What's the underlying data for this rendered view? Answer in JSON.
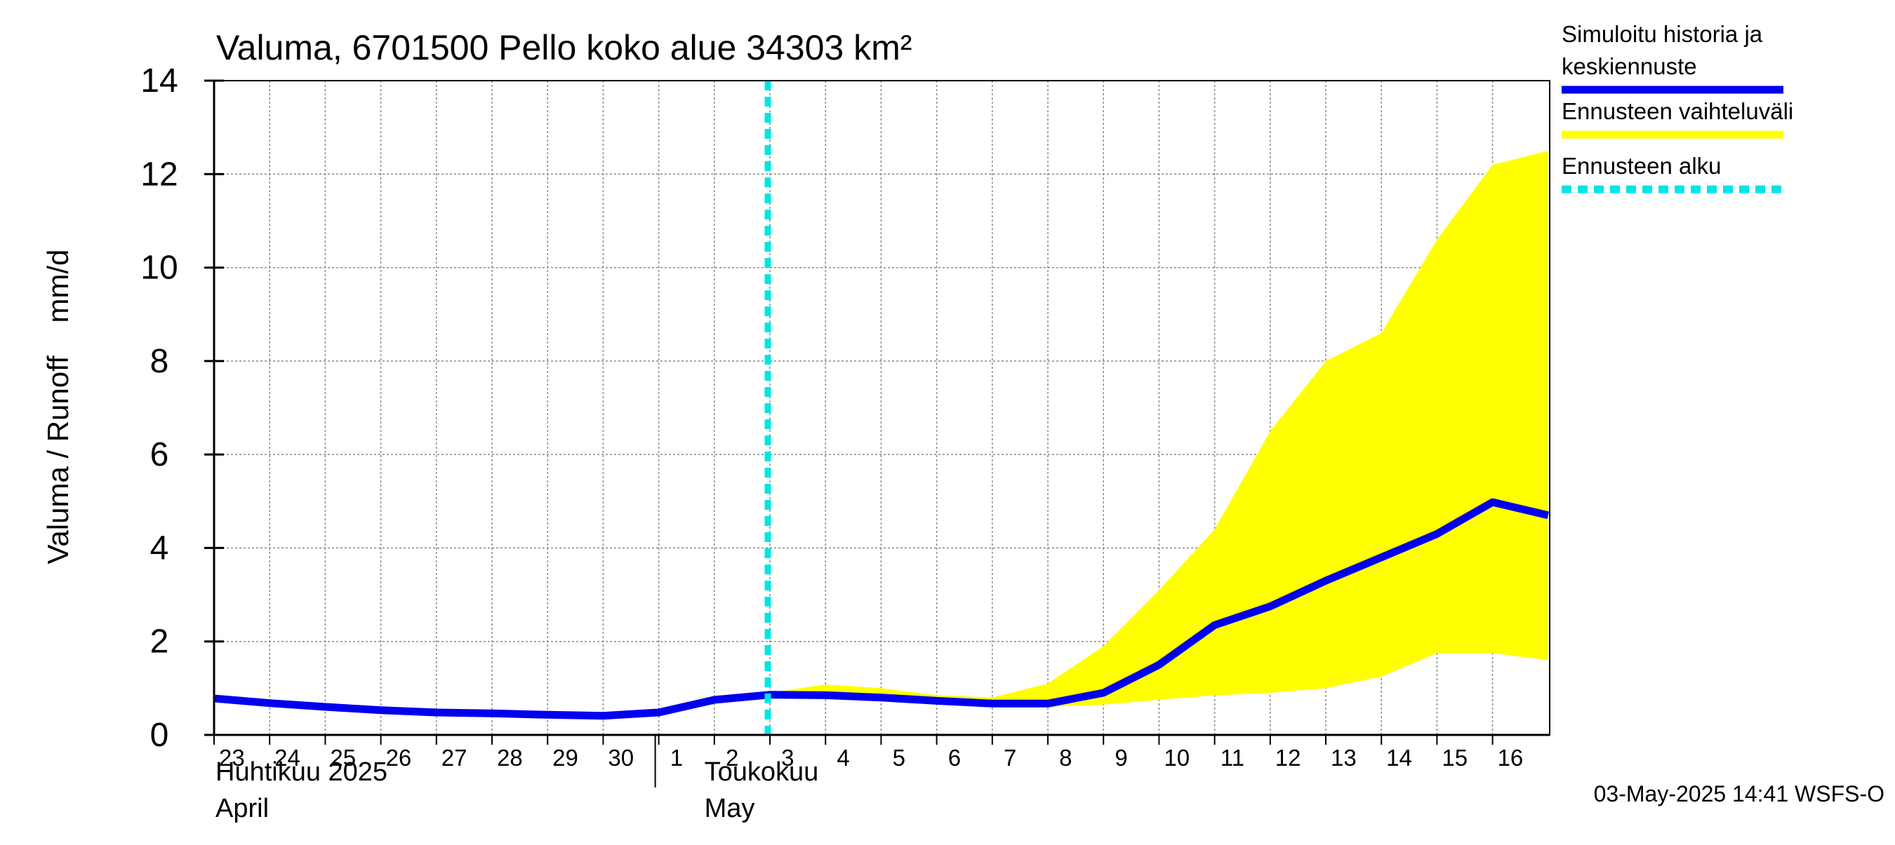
{
  "chart_data": {
    "type": "line",
    "title": "Valuma, 6701500 Pello koko alue 34303 km²",
    "ylabel": "Valuma / Runoff    mm/d",
    "ylim": [
      0,
      14
    ],
    "y_ticks": [
      0,
      2,
      4,
      6,
      8,
      10,
      12,
      14
    ],
    "x_range": [
      "2025-04-23",
      "2025-05-16"
    ],
    "x_tick_labels": [
      "23",
      "24",
      "25",
      "26",
      "27",
      "28",
      "29",
      "30",
      "1",
      "2",
      "3",
      "4",
      "5",
      "6",
      "7",
      "8",
      "9",
      "10",
      "11",
      "12",
      "13",
      "14",
      "15",
      "16"
    ],
    "month_labels": [
      {
        "fi": "Huhtikuu  2025",
        "en": "April"
      },
      {
        "fi": "Toukokuu",
        "en": "May"
      }
    ],
    "grid": true,
    "legend_position": "right",
    "forecast_start": "2025-05-03",
    "series": [
      {
        "name": "Simuloitu historia ja keskiennuste",
        "kind": "line",
        "color": "#0000ee",
        "x": [
          "2025-04-23",
          "2025-04-24",
          "2025-04-25",
          "2025-04-26",
          "2025-04-27",
          "2025-04-28",
          "2025-04-29",
          "2025-04-30",
          "2025-05-01",
          "2025-05-02",
          "2025-05-03",
          "2025-05-04",
          "2025-05-05",
          "2025-05-06",
          "2025-05-07",
          "2025-05-08",
          "2025-05-09",
          "2025-05-10",
          "2025-05-11",
          "2025-05-12",
          "2025-05-13",
          "2025-05-14",
          "2025-05-15",
          "2025-05-16",
          "2025-05-17"
        ],
        "y": [
          0.78,
          0.68,
          0.6,
          0.53,
          0.48,
          0.46,
          0.43,
          0.41,
          0.48,
          0.75,
          0.86,
          0.85,
          0.8,
          0.73,
          0.67,
          0.67,
          0.9,
          1.5,
          2.35,
          2.75,
          3.3,
          3.8,
          4.3,
          4.98,
          4.7
        ]
      },
      {
        "name": "Ennusteen vaihteluväli",
        "kind": "band",
        "color": "#ffff00",
        "x": [
          "2025-05-03",
          "2025-05-04",
          "2025-05-05",
          "2025-05-06",
          "2025-05-07",
          "2025-05-08",
          "2025-05-09",
          "2025-05-10",
          "2025-05-11",
          "2025-05-12",
          "2025-05-13",
          "2025-05-14",
          "2025-05-15",
          "2025-05-16",
          "2025-05-17"
        ],
        "upper": [
          0.9,
          1.08,
          1.0,
          0.85,
          0.8,
          1.1,
          1.9,
          3.1,
          4.4,
          6.5,
          8.0,
          8.6,
          10.6,
          12.2,
          12.5
        ],
        "lower": [
          0.82,
          0.78,
          0.72,
          0.66,
          0.62,
          0.6,
          0.65,
          0.75,
          0.85,
          0.9,
          1.0,
          1.25,
          1.75,
          1.75,
          1.6
        ]
      },
      {
        "name": "Ennusteen alku",
        "kind": "vline",
        "color": "#00e5e5"
      }
    ]
  },
  "legend": {
    "items": [
      {
        "label_lines": [
          "Simuloitu historia ja",
          "keskiennuste"
        ],
        "color": "#0000ee",
        "style": "solid"
      },
      {
        "label_lines": [
          "Ennusteen vaihteluväli"
        ],
        "color": "#ffff00",
        "style": "solid"
      },
      {
        "label_lines": [
          "Ennusteen alku"
        ],
        "color": "#00e5e5",
        "style": "dashed"
      }
    ]
  },
  "footer": {
    "timestamp": "03-May-2025 14:41 WSFS-O"
  }
}
